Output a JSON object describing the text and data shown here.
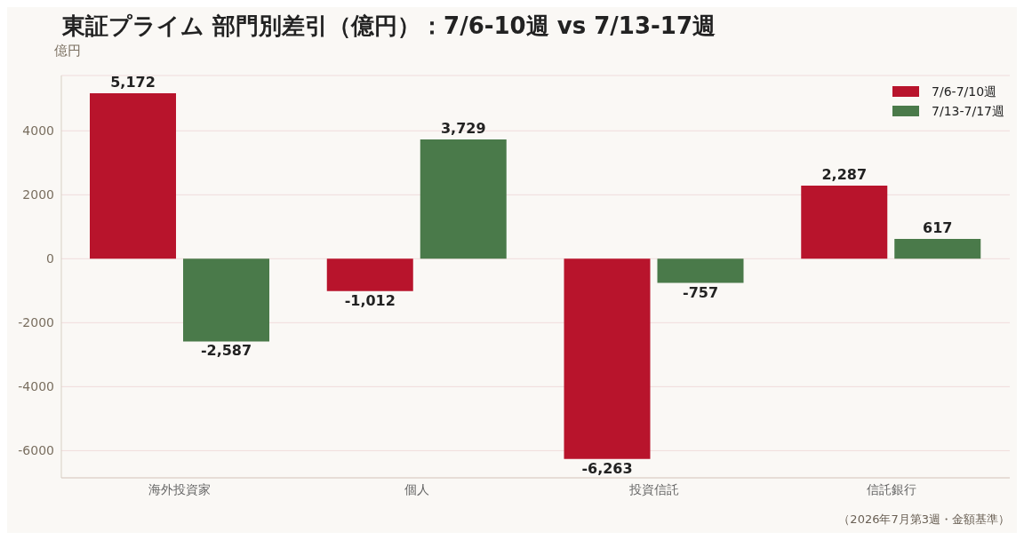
{
  "chart_data": {
    "type": "bar",
    "title": "東証プライム 部門別差引（億円）：7/6-10週 vs 7/13-17週",
    "ylabel": "億円",
    "categories": [
      "海外投資家",
      "個人",
      "投資信託",
      "信託銀行"
    ],
    "series": [
      {
        "name": "7/6-7/10週",
        "color": "#b8142c",
        "values": [
          5172,
          -1012,
          -6263,
          2287
        ],
        "value_labels": [
          "5,172",
          "-1,012",
          "-6,263",
          "2,287"
        ]
      },
      {
        "name": "7/13-7/17週",
        "color": "#4a7a4a",
        "values": [
          -2587,
          3729,
          -757,
          617
        ],
        "value_labels": [
          "-2,587",
          "3,729",
          "-757",
          "617"
        ]
      }
    ],
    "ylim": [
      -6850,
      5730
    ],
    "yticks": [
      -6000,
      -4000,
      -2000,
      0,
      2000,
      4000
    ],
    "grid": "y",
    "legend": "top right",
    "annotations": [
      "（2026年7月第3週・金額基準）"
    ]
  }
}
